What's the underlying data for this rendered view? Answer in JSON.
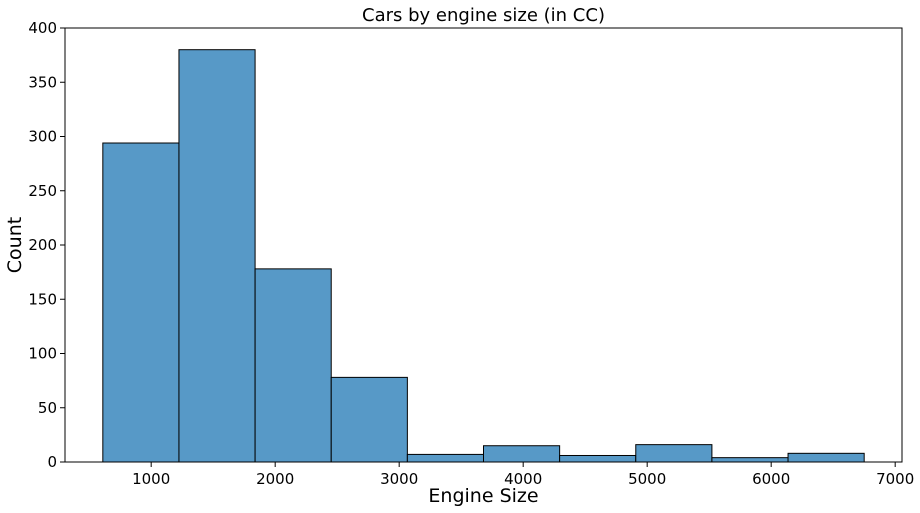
{
  "chart_data": {
    "type": "bar",
    "title": "Cars by engine size (in CC)",
    "xlabel": "Engine Size",
    "ylabel": "Count",
    "bin_edges": [
      610,
      1224,
      1838,
      2452,
      3066,
      3680,
      4294,
      4908,
      5522,
      6136,
      6750
    ],
    "values": [
      294,
      380,
      178,
      78,
      7,
      15,
      6,
      16,
      4,
      8
    ],
    "xlim": [
      305,
      7055
    ],
    "ylim": [
      0,
      400
    ],
    "xticks": [
      1000,
      2000,
      3000,
      4000,
      5000,
      6000,
      7000
    ],
    "xtick_labels": [
      "1000",
      "2000",
      "3000",
      "4000",
      "5000",
      "6000",
      "7000"
    ],
    "yticks": [
      0,
      50,
      100,
      150,
      200,
      250,
      300,
      350,
      400
    ],
    "ytick_labels": [
      "0",
      "50",
      "100",
      "150",
      "200",
      "250",
      "300",
      "350",
      "400"
    ],
    "bar_color": "#5799c7",
    "edge_color": "#000000",
    "grid": false
  }
}
